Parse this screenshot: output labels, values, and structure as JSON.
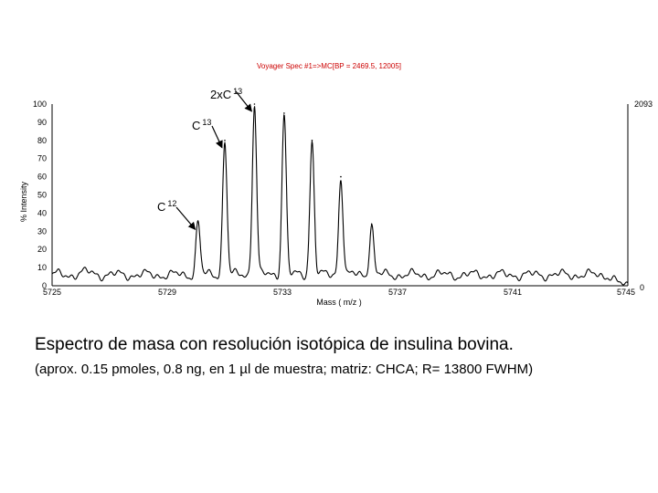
{
  "chart_data": {
    "type": "line",
    "title": "Voyager Spec #1=>MC[BP = 2469.5, 12005]",
    "xlabel": "Mass ( m/z )",
    "ylabel": "% Intensity",
    "xlim": [
      5725,
      5745
    ],
    "ylim": [
      0,
      100
    ],
    "x_ticks": [
      "5725",
      "5729",
      "5733",
      "5737",
      "5741",
      "5745"
    ],
    "y_ticks": [
      "0",
      "10",
      "20",
      "30",
      "40",
      "50",
      "60",
      "70",
      "80",
      "90",
      "100"
    ],
    "max_intensity_label": "2093",
    "right_zero_label": "0",
    "peaks": [
      {
        "x": 5730.07,
        "y": 35
      },
      {
        "x": 5731.0,
        "y": 80
      },
      {
        "x": 5732.03,
        "y": 100
      },
      {
        "x": 5733.06,
        "y": 95
      },
      {
        "x": 5734.03,
        "y": 80
      },
      {
        "x": 5735.03,
        "y": 60
      },
      {
        "x": 5736.1,
        "y": 34
      }
    ],
    "annotations": [
      {
        "base": "2xC",
        "sup": "13",
        "target_x": 5732.03,
        "target_y": 100
      },
      {
        "base": "C",
        "sup": "13",
        "target_x": 5731.0,
        "target_y": 80
      },
      {
        "base": "C",
        "sup": "12",
        "target_x": 5730.07,
        "target_y": 35
      }
    ]
  },
  "caption": {
    "main": "Espectro de masa con resolución isotópica de insulina bovina.",
    "sub": "(aprox. 0.15 pmoles, 0.8 ng, en 1 µl de muestra; matriz: CHCA; R= 13800 FWHM)"
  }
}
